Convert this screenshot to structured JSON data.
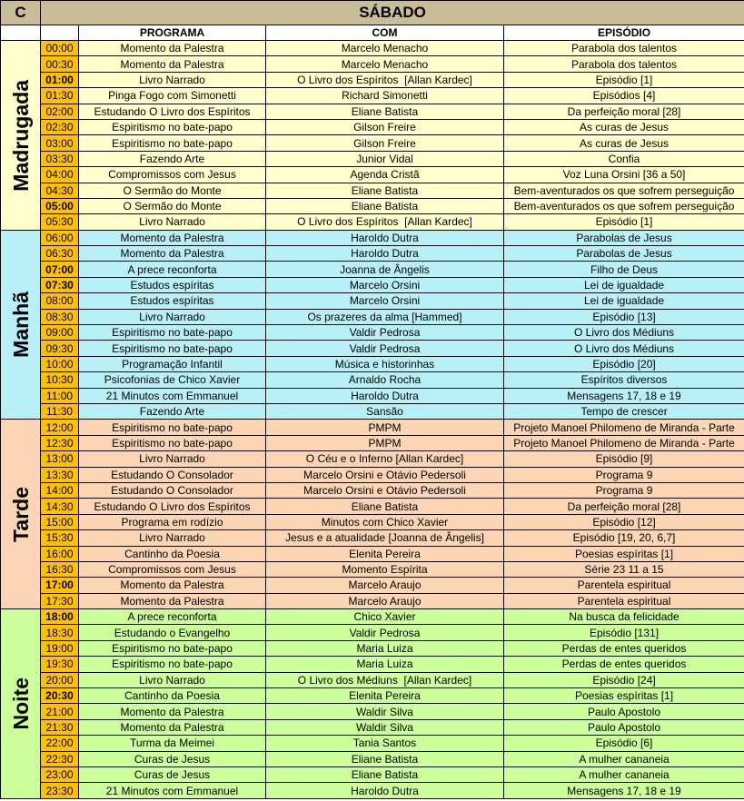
{
  "header": {
    "corner": "C",
    "day": "SÁBADO"
  },
  "columns": {
    "programa": "PROGRAMA",
    "com": "COM",
    "episodio": "EPISÓDIO"
  },
  "colors": {
    "header": "#c9bd97",
    "time": "#ffc000",
    "madrugada": "#ffffcc",
    "manha": "#b7f0f7",
    "tarde": "#fcd5b4",
    "noite": "#ccff99"
  },
  "groups": [
    {
      "label": "Madrugada",
      "color": "#ffffcc",
      "rows": [
        {
          "time": "00:00",
          "bold": false,
          "programa": "Momento da Palestra",
          "com": "Marcelo Menacho",
          "episodio": "Parabola dos talentos"
        },
        {
          "time": "00:30",
          "bold": false,
          "programa": "Momento da Palestra",
          "com": "Marcelo Menacho",
          "episodio": "Parabola dos talentos"
        },
        {
          "time": "01:00",
          "bold": true,
          "programa": "Livro Narrado",
          "com": "O Livro dos Espíritos  [Allan Kardec]",
          "episodio": "Episódio [1]"
        },
        {
          "time": "01:30",
          "bold": false,
          "programa": "Pinga Fogo com Simonetti",
          "com": "Richard Simonetti",
          "episodio": "Episódios [4]"
        },
        {
          "time": "02:00",
          "bold": false,
          "programa": "Estudando O Livro dos Espíritos",
          "com": "Eliane Batista",
          "episodio": "Da perfeição moral [28]"
        },
        {
          "time": "02:30",
          "bold": false,
          "programa": "Espiritismo no bate-papo",
          "com": "Gilson Freire",
          "episodio": "As curas de Jesus"
        },
        {
          "time": "03:00",
          "bold": false,
          "programa": "Espiritismo no bate-papo",
          "com": "Gilson Freire",
          "episodio": "As curas de Jesus"
        },
        {
          "time": "03:30",
          "bold": false,
          "programa": "Fazendo Arte",
          "com": "Junior Vidal",
          "episodio": "Confia"
        },
        {
          "time": "04:00",
          "bold": false,
          "programa": "Compromissos com Jesus",
          "com": "Agenda Cristã",
          "episodio": "Voz Luna Orsini [36 a 50]"
        },
        {
          "time": "04:30",
          "bold": false,
          "programa": "O Sermão do Monte",
          "com": "Eliane Batista",
          "episodio": "Bem-aventurados os que sofrem perseguição"
        },
        {
          "time": "05:00",
          "bold": true,
          "programa": "O Sermão do Monte",
          "com": "Eliane Batista",
          "episodio": "Bem-aventurados os que sofrem perseguição"
        },
        {
          "time": "05:30",
          "bold": false,
          "programa": "Livro Narrado",
          "com": "O Livro dos Espíritos  [Allan Kardec]",
          "episodio": "Episódio [1]"
        }
      ]
    },
    {
      "label": "Manhã",
      "color": "#b7f0f7",
      "rows": [
        {
          "time": "06:00",
          "bold": false,
          "programa": "Momento da Palestra",
          "com": "Haroldo Dutra",
          "episodio": "Parabolas de Jesus"
        },
        {
          "time": "06:30",
          "bold": false,
          "programa": "Momento da Palestra",
          "com": "Haroldo Dutra",
          "episodio": "Parabolas de Jesus"
        },
        {
          "time": "07:00",
          "bold": true,
          "programa": "A prece reconforta",
          "com": "Joanna de Ângelis",
          "episodio": "Filho de Deus"
        },
        {
          "time": "07:30",
          "bold": true,
          "programa": "Estudos espíritas",
          "com": "Marcelo Orsini",
          "episodio": "Lei de igualdade"
        },
        {
          "time": "08:00",
          "bold": false,
          "programa": "Estudos espíritas",
          "com": "Marcelo Orsini",
          "episodio": "Lei de igualdade"
        },
        {
          "time": "08:30",
          "bold": false,
          "programa": "Livro Narrado",
          "com": "Os prazeres da alma [Hammed]",
          "episodio": "Episódio [13]"
        },
        {
          "time": "09:00",
          "bold": false,
          "programa": "Espiritismo no bate-papo",
          "com": "Valdir Pedrosa",
          "episodio": "O Livro dos Médiuns"
        },
        {
          "time": "09:30",
          "bold": false,
          "programa": "Espiritismo no bate-papo",
          "com": "Valdir Pedrosa",
          "episodio": "O Livro dos Médiuns"
        },
        {
          "time": "10:00",
          "bold": false,
          "programa": "Programação Infantil",
          "com": "Música e historinhas",
          "episodio": "Episódio [20]"
        },
        {
          "time": "10:30",
          "bold": false,
          "programa": "Psicofonias de Chico Xavier",
          "com": "Arnaldo Rocha",
          "episodio": "Espíritos diversos"
        },
        {
          "time": "11:00",
          "bold": false,
          "programa": "21 Minutos com Emmanuel",
          "com": "Haroldo Dutra",
          "episodio": "Mensagens 17, 18 e 19"
        },
        {
          "time": "11:30",
          "bold": false,
          "programa": "Fazendo Arte",
          "com": "Sansão",
          "episodio": "Tempo de crescer"
        }
      ]
    },
    {
      "label": "Tarde",
      "color": "#fcd5b4",
      "rows": [
        {
          "time": "12:00",
          "bold": false,
          "programa": "Espiritismo no bate-papo",
          "com": "PMPM",
          "episodio": "Projeto Manoel Philomeno de Miranda - Parte"
        },
        {
          "time": "12:30",
          "bold": false,
          "programa": "Espiritismo no bate-papo",
          "com": "PMPM",
          "episodio": "Projeto Manoel Philomeno de Miranda - Parte"
        },
        {
          "time": "13:00",
          "bold": false,
          "programa": "Livro Narrado",
          "com": "O Céu e o Inferno [Allan Kardec]",
          "episodio": "Episódio [9]"
        },
        {
          "time": "13:30",
          "bold": false,
          "programa": "Estudando O Consolador",
          "com": "Marcelo Orsini e Otávio Pedersoli",
          "episodio": "Programa 9"
        },
        {
          "time": "14:00",
          "bold": false,
          "programa": "Estudando O Consolador",
          "com": "Marcelo Orsini e Otávio Pedersoli",
          "episodio": "Programa 9"
        },
        {
          "time": "14:30",
          "bold": false,
          "programa": "Estudando O Livro dos Espíritos",
          "com": "Eliane Batista",
          "episodio": "Da perfeição moral [28]"
        },
        {
          "time": "15:00",
          "bold": false,
          "programa": "Programa em rodízio",
          "com": "Minutos com Chico Xavier",
          "episodio": "Episódio [12]"
        },
        {
          "time": "15:30",
          "bold": false,
          "programa": "Livro Narrado",
          "com": "Jesus e a atualidade [Joanna de Ângelis]",
          "episodio": "Episódio [19, 20, 6,7]"
        },
        {
          "time": "16:00",
          "bold": false,
          "programa": "Cantinho da Poesia",
          "com": "Elenita Pereira",
          "episodio": "Poesias espíritas [1]"
        },
        {
          "time": "16:30",
          "bold": false,
          "programa": "Compromissos com Jesus",
          "com": "Momento Espírita",
          "episodio": "Série 23 11 a 15"
        },
        {
          "time": "17:00",
          "bold": true,
          "programa": "Momento da Palestra",
          "com": "Marcelo Araujo",
          "episodio": "Parentela espiritual"
        },
        {
          "time": "17:30",
          "bold": false,
          "programa": "Momento da Palestra",
          "com": "Marcelo Araujo",
          "episodio": "Parentela espiritual"
        }
      ]
    },
    {
      "label": "Noite",
      "color": "#ccff99",
      "rows": [
        {
          "time": "18:00",
          "bold": true,
          "programa": "A prece reconforta",
          "com": "Chico Xavier",
          "episodio": "Na busca da felicidade"
        },
        {
          "time": "18:30",
          "bold": false,
          "programa": "Estudando o Evangelho",
          "com": "Valdir Pedrosa",
          "episodio": "Episódio [131]"
        },
        {
          "time": "19:00",
          "bold": false,
          "programa": "Espiritismo no bate-papo",
          "com": "Maria Luiza",
          "episodio": "Perdas de entes queridos"
        },
        {
          "time": "19:30",
          "bold": false,
          "programa": "Espiritismo no bate-papo",
          "com": "Maria Luiza",
          "episodio": "Perdas de entes queridos"
        },
        {
          "time": "20:00",
          "bold": false,
          "programa": "Livro Narrado",
          "com": "O Livro dos Médiuns  [Allan Kardec]",
          "episodio": "Episódio [24]"
        },
        {
          "time": "20:30",
          "bold": true,
          "programa": "Cantinho da Poesia",
          "com": "Elenita Pereira",
          "episodio": "Poesias espíritas [1]"
        },
        {
          "time": "21:00",
          "bold": false,
          "programa": "Momento da Palestra",
          "com": "Waldir Silva",
          "episodio": "Paulo Apostolo"
        },
        {
          "time": "21:30",
          "bold": false,
          "programa": "Momento da Palestra",
          "com": "Waldir Silva",
          "episodio": "Paulo Apostolo"
        },
        {
          "time": "22:00",
          "bold": false,
          "programa": "Turma da Meimei",
          "com": "Tania Santos",
          "episodio": "Episódio [6]"
        },
        {
          "time": "22:30",
          "bold": false,
          "programa": "Curas de Jesus",
          "com": "Eliane Batista",
          "episodio": "A mulher cananeia"
        },
        {
          "time": "23:00",
          "bold": false,
          "programa": "Curas de Jesus",
          "com": "Eliane Batista",
          "episodio": "A mulher cananeia"
        },
        {
          "time": "23:30",
          "bold": false,
          "programa": "21 Minutos com Emmanuel",
          "com": "Haroldo Dutra",
          "episodio": "Mensagens 17, 18 e 19"
        }
      ]
    }
  ]
}
